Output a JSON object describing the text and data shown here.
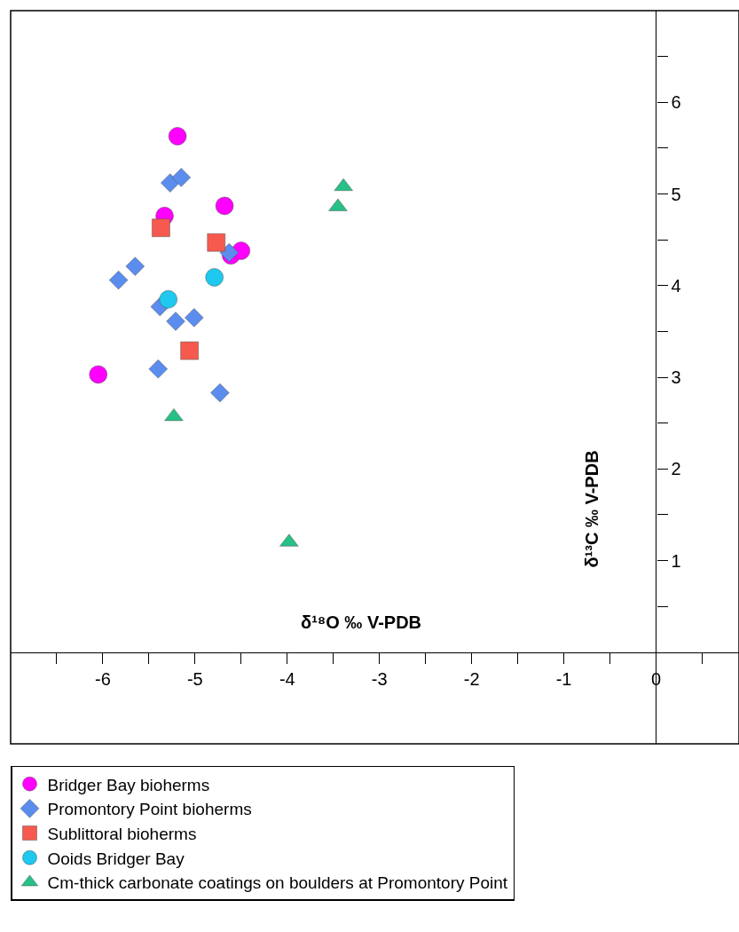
{
  "chart_data": {
    "type": "scatter",
    "xlabel": "δ¹⁸O ‰ V-PDB",
    "ylabel": "δ¹³C ‰ V-PDB",
    "xlim": [
      -7,
      0.9
    ],
    "ylim": [
      -1,
      7
    ],
    "xticks": [
      {
        "value": -6.5,
        "label": null
      },
      -6,
      {
        "value": -5.5,
        "label": null
      },
      -5,
      {
        "value": -4.5,
        "label": null
      },
      -4,
      {
        "value": -3.5,
        "label": null
      },
      -3,
      {
        "value": -2.5,
        "label": null
      },
      -2,
      {
        "value": -1.5,
        "label": null
      },
      -1,
      {
        "value": -0.5,
        "label": null
      },
      0,
      {
        "value": 0.5,
        "label": null
      }
    ],
    "yticks": [
      {
        "value": 0.5,
        "label": null
      },
      1,
      {
        "value": 1.5,
        "label": null
      },
      2,
      {
        "value": 2.5,
        "label": null
      },
      3,
      {
        "value": 3.5,
        "label": null
      },
      4,
      {
        "value": 4.5,
        "label": null
      },
      5,
      {
        "value": 5.5,
        "label": null
      },
      6,
      {
        "value": 6.5,
        "label": null
      }
    ],
    "legend": "bottom",
    "series": [
      {
        "name": "Bridger Bay bioherms",
        "color": "#ff00ff",
        "marker": "circle",
        "x": [
          -5.19,
          -4.68,
          -5.33,
          -4.61,
          -4.5,
          -6.05
        ],
        "values": [
          5.63,
          4.87,
          4.76,
          4.33,
          4.38,
          3.03
        ]
      },
      {
        "name": "Promontory Point bioherms",
        "color": "#5b8def",
        "marker": "diamond",
        "x": [
          -5.27,
          -5.15,
          -4.63,
          -5.65,
          -5.83,
          -5.38,
          -5.21,
          -5.01,
          -5.4,
          -4.73
        ],
        "values": [
          5.12,
          5.18,
          4.36,
          4.21,
          4.06,
          3.77,
          3.61,
          3.65,
          3.09,
          2.83
        ]
      },
      {
        "name": "Sublittoral bioherms",
        "color": "#f65a4e",
        "marker": "square",
        "x": [
          -5.37,
          -4.77,
          -5.06
        ],
        "values": [
          4.63,
          4.47,
          3.29
        ]
      },
      {
        "name": "Ooids Bridger Bay",
        "color": "#1ec8ee",
        "marker": "circle",
        "x": [
          -4.79,
          -5.29
        ],
        "values": [
          4.09,
          3.85
        ]
      },
      {
        "name": "Cm-thick carbonate coatings on boulders at Promontory Point",
        "color": "#27c086",
        "marker": "triangle",
        "x": [
          -3.39,
          -3.45,
          -5.23,
          -3.98
        ],
        "values": [
          5.08,
          4.86,
          2.57,
          1.2
        ]
      }
    ]
  }
}
